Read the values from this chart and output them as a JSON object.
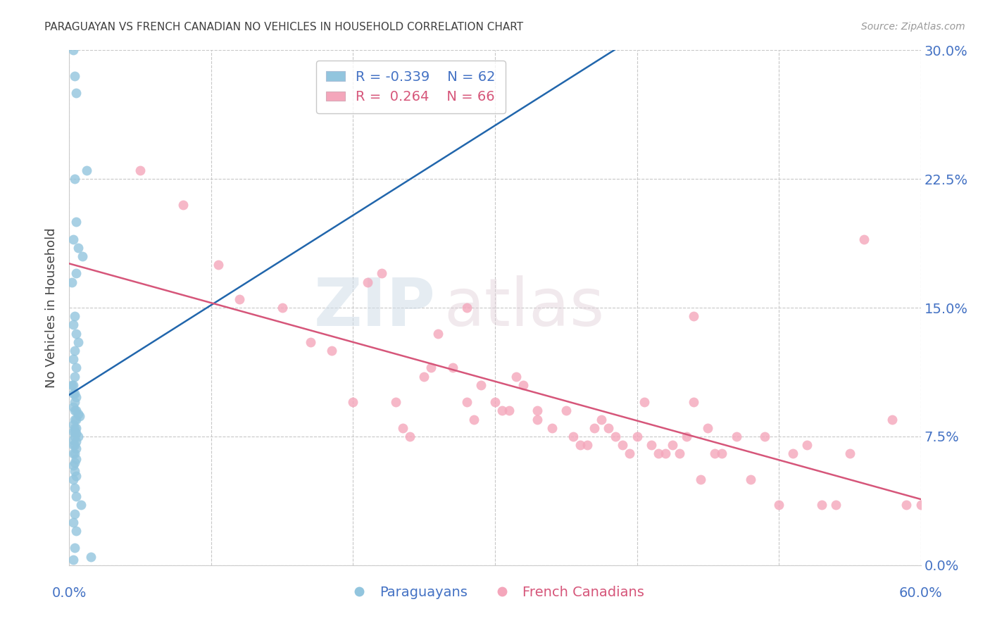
{
  "title": "PARAGUAYAN VS FRENCH CANADIAN NO VEHICLES IN HOUSEHOLD CORRELATION CHART",
  "source": "Source: ZipAtlas.com",
  "ylabel": "No Vehicles in Household",
  "ytick_vals": [
    0.0,
    7.5,
    15.0,
    22.5,
    30.0
  ],
  "xlim": [
    0.0,
    60.0
  ],
  "ylim": [
    0.0,
    30.0
  ],
  "watermark_zip": "ZIP",
  "watermark_atlas": "atlas",
  "legend_blue_r": "-0.339",
  "legend_blue_n": "62",
  "legend_pink_r": "0.264",
  "legend_pink_n": "66",
  "blue_color": "#92c5de",
  "pink_color": "#f4a6bb",
  "blue_line_color": "#2166ac",
  "pink_line_color": "#d6567a",
  "title_color": "#404040",
  "tick_color": "#4472c4",
  "grid_color": "#c8c8c8",
  "background_color": "#ffffff",
  "paraguayan_x": [
    0.3,
    0.4,
    0.5,
    1.2,
    0.4,
    0.5,
    0.3,
    0.6,
    0.9,
    0.5,
    0.2,
    0.4,
    0.3,
    0.5,
    0.6,
    0.4,
    0.3,
    0.5,
    0.4,
    0.3,
    0.2,
    0.4,
    0.3,
    0.5,
    0.4,
    0.3,
    0.5,
    0.4,
    0.6,
    0.7,
    0.5,
    0.4,
    0.3,
    0.5,
    0.4,
    0.3,
    0.4,
    0.5,
    0.6,
    0.4,
    0.3,
    0.5,
    0.4,
    0.3,
    0.5,
    0.4,
    0.3,
    0.5,
    0.4,
    0.3,
    0.4,
    0.5,
    0.3,
    0.4,
    0.5,
    0.8,
    0.4,
    0.3,
    0.5,
    0.4,
    1.5,
    0.3
  ],
  "paraguayan_y": [
    30.0,
    28.5,
    27.5,
    23.0,
    22.5,
    20.0,
    19.0,
    18.5,
    18.0,
    17.0,
    16.5,
    14.5,
    14.0,
    13.5,
    13.0,
    12.5,
    12.0,
    11.5,
    11.0,
    10.5,
    10.5,
    10.0,
    10.0,
    9.8,
    9.5,
    9.2,
    9.0,
    9.0,
    8.8,
    8.7,
    8.5,
    8.5,
    8.2,
    8.0,
    8.0,
    7.8,
    7.8,
    7.7,
    7.5,
    7.5,
    7.3,
    7.2,
    7.0,
    7.0,
    6.8,
    6.5,
    6.5,
    6.2,
    6.0,
    5.8,
    5.5,
    5.2,
    5.0,
    4.5,
    4.0,
    3.5,
    3.0,
    2.5,
    2.0,
    1.0,
    0.5,
    0.3
  ],
  "french_canadian_x": [
    5.0,
    8.0,
    10.5,
    12.0,
    15.0,
    17.0,
    20.0,
    22.0,
    23.0,
    24.0,
    25.0,
    25.5,
    26.0,
    27.0,
    28.0,
    28.5,
    29.0,
    30.0,
    30.5,
    31.0,
    32.0,
    33.0,
    34.0,
    35.0,
    35.5,
    36.0,
    37.0,
    37.5,
    38.0,
    38.5,
    39.0,
    39.5,
    40.0,
    40.5,
    41.0,
    41.5,
    42.0,
    42.5,
    43.0,
    43.5,
    44.0,
    44.5,
    45.0,
    45.5,
    46.0,
    47.0,
    48.0,
    49.0,
    50.0,
    51.0,
    52.0,
    53.0,
    54.0,
    55.0,
    56.0,
    58.0,
    59.0,
    60.0,
    21.0,
    33.0,
    28.0,
    18.5,
    23.5,
    31.5,
    36.5,
    44.0
  ],
  "french_canadian_y": [
    23.0,
    21.0,
    17.5,
    15.5,
    15.0,
    13.0,
    9.5,
    17.0,
    9.5,
    7.5,
    11.0,
    11.5,
    13.5,
    11.5,
    9.5,
    8.5,
    10.5,
    9.5,
    9.0,
    9.0,
    10.5,
    8.5,
    8.0,
    9.0,
    7.5,
    7.0,
    8.0,
    8.5,
    8.0,
    7.5,
    7.0,
    6.5,
    7.5,
    9.5,
    7.0,
    6.5,
    6.5,
    7.0,
    6.5,
    7.5,
    9.5,
    5.0,
    8.0,
    6.5,
    6.5,
    7.5,
    5.0,
    7.5,
    3.5,
    6.5,
    7.0,
    3.5,
    3.5,
    6.5,
    19.0,
    8.5,
    3.5,
    3.5,
    16.5,
    9.0,
    15.0,
    12.5,
    8.0,
    11.0,
    7.0,
    14.5
  ]
}
